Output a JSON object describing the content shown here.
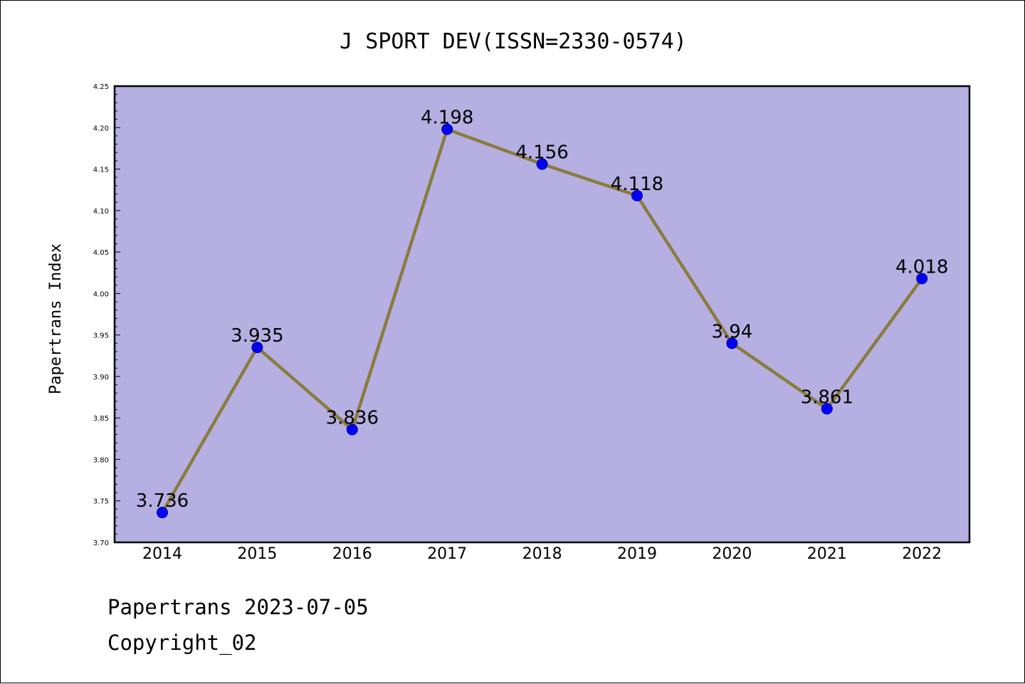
{
  "chart_data": {
    "type": "line",
    "title": "J SPORT DEV(ISSN=2330-0574)",
    "xlabel": "",
    "ylabel": "Papertrans Index",
    "categories": [
      "2014",
      "2015",
      "2016",
      "2017",
      "2018",
      "2019",
      "2020",
      "2021",
      "2022"
    ],
    "values": [
      3.736,
      3.935,
      3.836,
      4.198,
      4.156,
      4.118,
      3.94,
      3.861,
      4.018
    ],
    "data_labels": [
      "3.736",
      "3.935",
      "3.836",
      "4.198",
      "4.156",
      "4.118",
      "3.94",
      "3.861",
      "4.018"
    ],
    "ylim": [
      3.7,
      4.25
    ],
    "yticks": [
      "3.70",
      "3.75",
      "3.80",
      "3.85",
      "3.90",
      "3.95",
      "4.00",
      "4.05",
      "4.10",
      "4.15",
      "4.20",
      "4.25"
    ],
    "grid": false,
    "colors": {
      "plot_background": "#b5afe2",
      "line": "#8b7b3c",
      "marker": "#0000ff"
    }
  },
  "footer": {
    "line1": "Papertrans 2023-07-05",
    "line2": "Copyright_02"
  }
}
